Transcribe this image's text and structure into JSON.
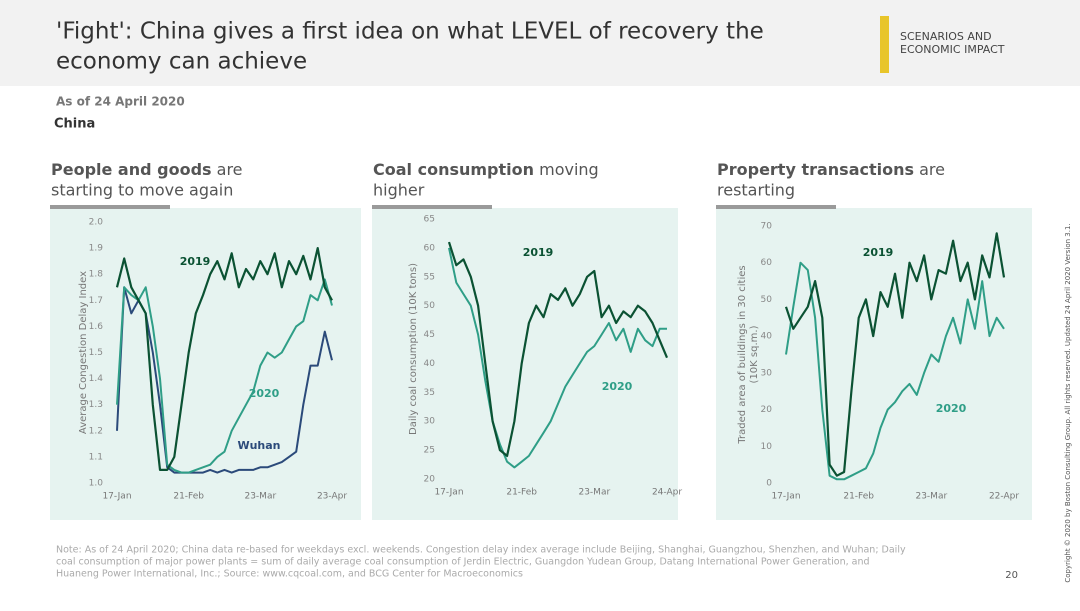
{
  "header": {
    "title_lines": [
      "'Fight': China gives a first idea on what LEVEL of recovery the",
      "economy can achieve"
    ],
    "section": [
      "SCENARIOS AND",
      "ECONOMIC IMPACT"
    ]
  },
  "as_of": "As of 24 April 2020",
  "region": "China",
  "note": [
    "Note: As of 24 April 2020; China data re-based for weekdays excl. weekends. Congestion delay index average include Beijing, Shanghai, Guangzhou, Shenzhen, and Wuhan; Daily",
    "coal consumption of major power plants = sum of daily average coal consumption of Jerdin Electric, Guangdon Yudean Group, Datang International Power Generation, and",
    "Huaneng Power International, Inc.;   Source: www.cqcoal.com, and BCG Center for Macroeconomics"
  ],
  "copyright": "Copyright © 2020 by Boston Consulting Group. All rights reserved.  Updated 24 April 2020 Version 3.1.",
  "page_number": "20",
  "chart_data": [
    {
      "type": "line",
      "heading_bold": "People and goods",
      "heading_rest": [
        " are",
        "starting to move again"
      ],
      "y_label": [
        "Average Congestion Delay Index"
      ],
      "categories": [
        "17-Jan",
        null,
        null,
        null,
        null,
        null,
        null,
        null,
        null,
        null,
        "21-Feb",
        null,
        null,
        null,
        null,
        null,
        null,
        null,
        null,
        null,
        "23-Mar",
        null,
        null,
        null,
        null,
        null,
        null,
        null,
        null,
        null,
        "23-Apr"
      ],
      "ylim": [
        1.0,
        2.0
      ],
      "yticks": [
        {
          "value": 1.0,
          "label": "1.0"
        },
        1.1,
        1.2,
        1.3,
        1.4,
        1.5,
        1.6,
        1.7,
        1.8,
        1.9,
        {
          "value": 2.0,
          "label": "2.0"
        }
      ],
      "series": [
        {
          "name": "2019",
          "color": "#0b5233",
          "values": [
            1.75,
            1.86,
            1.75,
            1.7,
            1.65,
            1.3,
            1.05,
            1.05,
            1.1,
            1.3,
            1.5,
            1.65,
            1.72,
            1.8,
            1.85,
            1.78,
            1.88,
            1.75,
            1.82,
            1.78,
            1.85,
            1.8,
            1.88,
            1.75,
            1.85,
            1.8,
            1.87,
            1.78,
            1.9,
            1.75,
            1.7
          ]
        },
        {
          "name": "2020",
          "color": "#2f9e87",
          "values": [
            1.3,
            1.75,
            1.72,
            1.7,
            1.75,
            1.6,
            1.4,
            1.07,
            1.05,
            1.04,
            1.04,
            1.05,
            1.06,
            1.07,
            1.1,
            1.12,
            1.2,
            1.25,
            1.3,
            1.35,
            1.45,
            1.5,
            1.48,
            1.5,
            1.55,
            1.6,
            1.62,
            1.72,
            1.7,
            1.78,
            1.68
          ]
        },
        {
          "name": "Wuhan",
          "color": "#2b4a7a",
          "values": [
            1.2,
            1.75,
            1.65,
            1.7,
            1.65,
            1.5,
            1.3,
            1.06,
            1.04,
            1.04,
            1.04,
            1.04,
            1.04,
            1.05,
            1.04,
            1.05,
            1.04,
            1.05,
            1.05,
            1.05,
            1.06,
            1.06,
            1.07,
            1.08,
            1.1,
            1.12,
            1.3,
            1.45,
            1.45,
            1.58,
            1.47
          ]
        }
      ]
    },
    {
      "type": "line",
      "heading_bold": "Coal consumption",
      "heading_rest": [
        " moving",
        "higher"
      ],
      "y_label": [
        "Daily coal consumption (10K tons)"
      ],
      "categories": [
        "17-Jan",
        null,
        null,
        null,
        null,
        null,
        null,
        null,
        null,
        null,
        "21-Feb",
        null,
        null,
        null,
        null,
        null,
        null,
        null,
        null,
        null,
        "23-Mar",
        null,
        null,
        null,
        null,
        null,
        null,
        null,
        null,
        null,
        "24-Apr"
      ],
      "ylim": [
        20,
        65
      ],
      "yticks": [
        20,
        25,
        30,
        35,
        40,
        45,
        50,
        55,
        60,
        65
      ],
      "series": [
        {
          "name": "2019",
          "color": "#0b5233",
          "values": [
            61,
            57,
            58,
            55,
            50,
            40,
            30,
            25,
            24,
            30,
            40,
            47,
            50,
            48,
            52,
            51,
            53,
            50,
            52,
            55,
            56,
            48,
            50,
            47,
            49,
            48,
            50,
            49,
            47,
            44,
            41
          ]
        },
        {
          "name": "2020",
          "color": "#2f9e87",
          "values": [
            60,
            54,
            52,
            50,
            45,
            37,
            30,
            26,
            23,
            22,
            23,
            24,
            26,
            28,
            30,
            33,
            36,
            38,
            40,
            42,
            43,
            45,
            47,
            44,
            46,
            42,
            46,
            44,
            43,
            46,
            46
          ]
        }
      ]
    },
    {
      "type": "line",
      "heading_bold": "Property transactions",
      "heading_rest": [
        " are",
        "restarting"
      ],
      "y_label": [
        "Traded area of buildings in 30 cities",
        "(10K sq.m.)"
      ],
      "categories": [
        "17-Jan",
        null,
        null,
        null,
        null,
        null,
        null,
        null,
        null,
        null,
        "21-Feb",
        null,
        null,
        null,
        null,
        null,
        null,
        null,
        null,
        null,
        "23-Mar",
        null,
        null,
        null,
        null,
        null,
        null,
        null,
        null,
        null,
        "22-Apr"
      ],
      "ylim": [
        0,
        70
      ],
      "yticks": [
        0,
        10,
        20,
        30,
        40,
        50,
        60,
        70
      ],
      "series": [
        {
          "name": "2019",
          "color": "#0b5233",
          "values": [
            48,
            42,
            45,
            48,
            55,
            45,
            5,
            2,
            3,
            25,
            45,
            50,
            40,
            52,
            48,
            57,
            45,
            60,
            55,
            62,
            50,
            58,
            57,
            66,
            55,
            60,
            50,
            62,
            56,
            68,
            56
          ]
        },
        {
          "name": "2020",
          "color": "#2f9e87",
          "values": [
            35,
            48,
            60,
            58,
            45,
            20,
            2,
            1,
            1,
            2,
            3,
            4,
            8,
            15,
            20,
            22,
            25,
            27,
            24,
            30,
            35,
            33,
            40,
            45,
            38,
            50,
            42,
            55,
            40,
            45,
            42
          ]
        }
      ]
    }
  ]
}
